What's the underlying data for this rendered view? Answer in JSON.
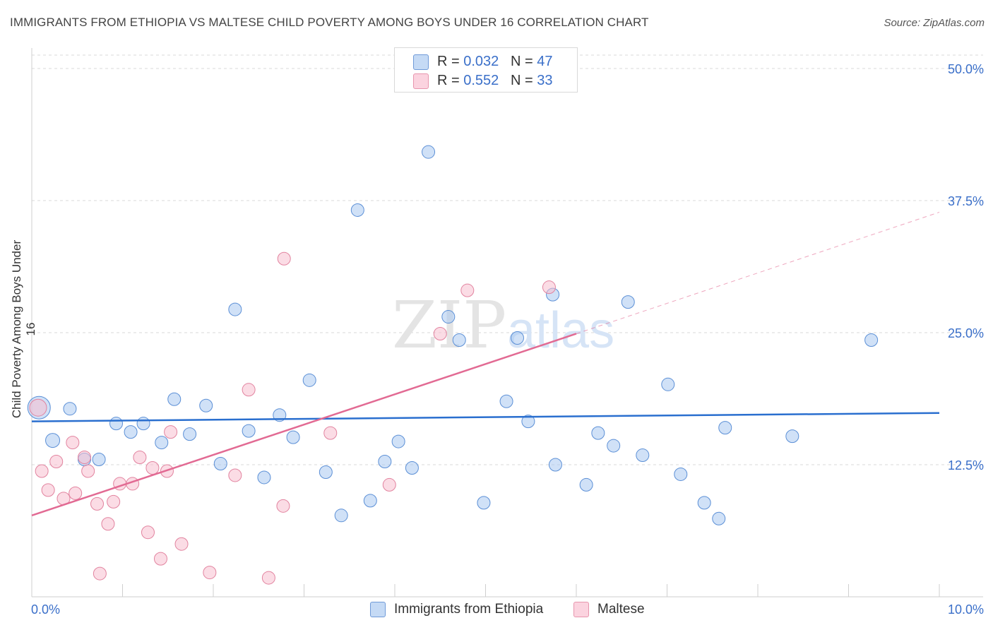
{
  "title": "IMMIGRANTS FROM ETHIOPIA VS MALTESE CHILD POVERTY AMONG BOYS UNDER 16 CORRELATION CHART",
  "source": "Source: ZipAtlas.com",
  "watermark": {
    "zip": "ZIP",
    "atlas": "atlas"
  },
  "legend_top": [
    {
      "r_label": "R = ",
      "r_value": "0.032",
      "n_label": "N = ",
      "n_value": "47",
      "color": "#a9c8f0"
    },
    {
      "r_label": "R = ",
      "r_value": "0.552",
      "n_label": "N = ",
      "n_value": "33",
      "color": "#f7bfd0"
    }
  ],
  "chart_data": {
    "type": "scatter",
    "title": "IMMIGRANTS FROM ETHIOPIA VS MALTESE CHILD POVERTY AMONG BOYS UNDER 16 CORRELATION CHART",
    "xlabel": "",
    "ylabel": "Child Poverty Among Boys Under 16",
    "xlim": [
      0,
      10
    ],
    "ylim": [
      0,
      50
    ],
    "x_tick_labels": [
      "0.0%",
      "10.0%"
    ],
    "y_ticks": [
      12.5,
      25.0,
      37.5,
      50.0
    ],
    "y_tick_labels": [
      "12.5%",
      "25.0%",
      "37.5%",
      "50.0%"
    ],
    "grid": true,
    "series": [
      {
        "name": "Immigrants from Ethiopia",
        "color": "#a9c8f0",
        "stroke": "#5b8fd6",
        "trend_color": "#2a6fcf",
        "trend": {
          "x0": 0,
          "y0": 16.6,
          "x1": 10,
          "y1": 17.4
        },
        "points": [
          [
            0.08,
            17.9,
            16
          ],
          [
            0.23,
            14.8,
            10
          ],
          [
            0.42,
            17.8,
            9
          ],
          [
            0.58,
            13.0,
            9
          ],
          [
            0.74,
            13.0,
            9
          ],
          [
            0.93,
            16.4,
            9
          ],
          [
            1.09,
            15.6,
            9
          ],
          [
            1.23,
            16.4,
            9
          ],
          [
            1.43,
            14.6,
            9
          ],
          [
            1.57,
            18.7,
            9
          ],
          [
            1.74,
            15.4,
            9
          ],
          [
            1.92,
            18.1,
            9
          ],
          [
            2.08,
            12.6,
            9
          ],
          [
            2.24,
            27.2,
            9
          ],
          [
            2.39,
            15.7,
            9
          ],
          [
            2.56,
            11.3,
            9
          ],
          [
            2.73,
            17.2,
            9
          ],
          [
            2.88,
            15.1,
            9
          ],
          [
            3.06,
            20.5,
            9
          ],
          [
            3.24,
            11.8,
            9
          ],
          [
            3.41,
            7.7,
            9
          ],
          [
            3.59,
            36.6,
            9
          ],
          [
            3.73,
            9.1,
            9
          ],
          [
            3.89,
            12.8,
            9
          ],
          [
            4.04,
            14.7,
            9
          ],
          [
            4.19,
            12.2,
            9
          ],
          [
            4.37,
            42.1,
            9
          ],
          [
            4.59,
            26.5,
            9
          ],
          [
            4.71,
            24.3,
            9
          ],
          [
            4.98,
            8.9,
            9
          ],
          [
            5.23,
            18.5,
            9
          ],
          [
            5.35,
            24.5,
            9
          ],
          [
            5.47,
            16.6,
            9
          ],
          [
            5.74,
            28.6,
            9
          ],
          [
            5.77,
            12.5,
            9
          ],
          [
            6.11,
            10.6,
            9
          ],
          [
            6.24,
            15.5,
            9
          ],
          [
            6.41,
            14.3,
            9
          ],
          [
            6.57,
            27.9,
            9
          ],
          [
            6.73,
            13.4,
            9
          ],
          [
            7.01,
            20.1,
            9
          ],
          [
            7.15,
            11.6,
            9
          ],
          [
            7.41,
            8.9,
            9
          ],
          [
            7.57,
            7.4,
            9
          ],
          [
            7.64,
            16.0,
            9
          ],
          [
            8.38,
            15.2,
            9
          ],
          [
            9.25,
            24.3,
            9
          ]
        ]
      },
      {
        "name": "Maltese",
        "color": "#f7bfd0",
        "stroke": "#e2839f",
        "trend_color": "#e26a93",
        "trend": {
          "x0": 0,
          "y0": 7.7,
          "x1": 6.0,
          "y1": 24.9
        },
        "trend_ext": {
          "x0": 6.0,
          "y0": 24.9,
          "x1": 10.0,
          "y1": 36.4
        },
        "points": [
          [
            0.07,
            17.9,
            12
          ],
          [
            0.11,
            11.9,
            9
          ],
          [
            0.18,
            10.1,
            9
          ],
          [
            0.27,
            12.8,
            9
          ],
          [
            0.35,
            9.3,
            9
          ],
          [
            0.45,
            14.6,
            9
          ],
          [
            0.48,
            9.8,
            9
          ],
          [
            0.58,
            13.2,
            9
          ],
          [
            0.62,
            11.9,
            9
          ],
          [
            0.72,
            8.8,
            9
          ],
          [
            0.75,
            2.2,
            9
          ],
          [
            0.84,
            6.9,
            9
          ],
          [
            0.9,
            9.0,
            9
          ],
          [
            0.97,
            10.7,
            9
          ],
          [
            1.11,
            10.7,
            9
          ],
          [
            1.19,
            13.2,
            9
          ],
          [
            1.28,
            6.1,
            9
          ],
          [
            1.33,
            12.2,
            9
          ],
          [
            1.42,
            3.6,
            9
          ],
          [
            1.49,
            11.9,
            9
          ],
          [
            1.53,
            15.6,
            9
          ],
          [
            1.65,
            5.0,
            9
          ],
          [
            1.96,
            2.3,
            9
          ],
          [
            2.24,
            11.5,
            9
          ],
          [
            2.39,
            19.6,
            9
          ],
          [
            2.61,
            1.8,
            9
          ],
          [
            2.78,
            32.0,
            9
          ],
          [
            2.77,
            8.6,
            9
          ],
          [
            3.29,
            15.5,
            9
          ],
          [
            3.94,
            10.6,
            9
          ],
          [
            4.5,
            24.9,
            9
          ],
          [
            4.8,
            29.0,
            9
          ],
          [
            5.7,
            29.3,
            9
          ]
        ]
      }
    ]
  },
  "bottom_legend": [
    {
      "label": "Immigrants from Ethiopia",
      "color": "#a9c8f0"
    },
    {
      "label": "Maltese",
      "color": "#f7bfd0"
    }
  ]
}
